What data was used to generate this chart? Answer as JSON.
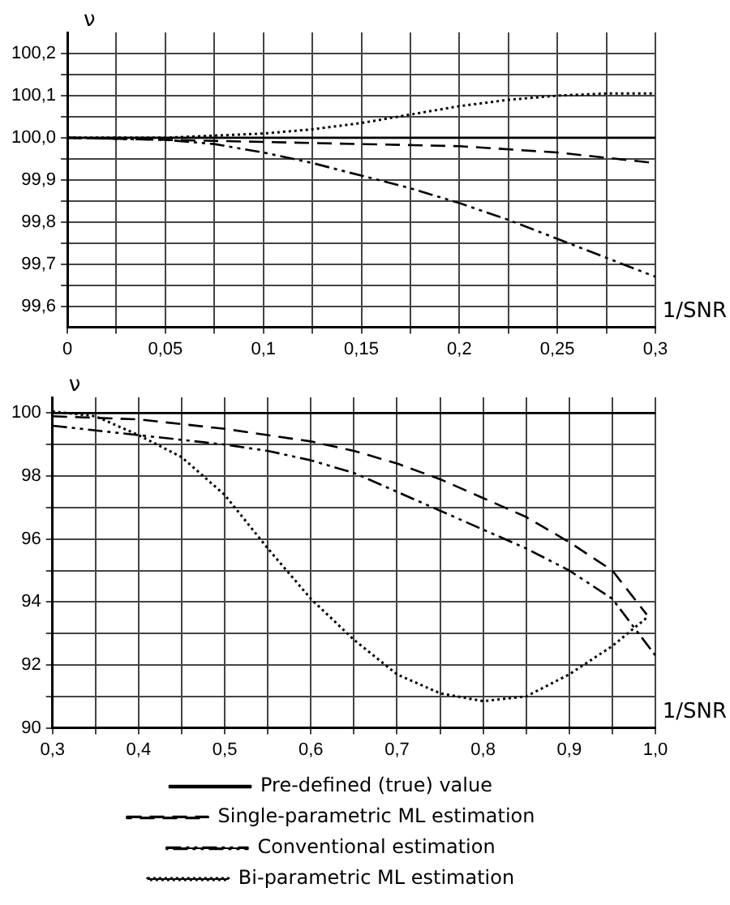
{
  "chart_data": [
    {
      "type": "line",
      "xlabel": "1/SNR",
      "ylabel": "ν",
      "xlim": [
        0,
        0.3
      ],
      "ylim": [
        99.55,
        100.25
      ],
      "grid": true,
      "legend": false,
      "marker": "none",
      "xticks": [
        {
          "value": 0,
          "label": "0"
        },
        {
          "value": 0.025,
          "label": null
        },
        {
          "value": 0.05,
          "label": "0,05"
        },
        {
          "value": 0.075,
          "label": null
        },
        {
          "value": 0.1,
          "label": "0,1"
        },
        {
          "value": 0.125,
          "label": null
        },
        {
          "value": 0.15,
          "label": "0,15"
        },
        {
          "value": 0.175,
          "label": null
        },
        {
          "value": 0.2,
          "label": "0,2"
        },
        {
          "value": 0.225,
          "label": null
        },
        {
          "value": 0.25,
          "label": "0,25"
        },
        {
          "value": 0.275,
          "label": null
        },
        {
          "value": 0.3,
          "label": "0,3"
        }
      ],
      "yticks": [
        {
          "value": 99.6,
          "label": "99,6"
        },
        {
          "value": 99.65,
          "label": null
        },
        {
          "value": 99.7,
          "label": "99,7"
        },
        {
          "value": 99.75,
          "label": null
        },
        {
          "value": 99.8,
          "label": "99,8"
        },
        {
          "value": 99.85,
          "label": null
        },
        {
          "value": 99.9,
          "label": "99,9"
        },
        {
          "value": 99.95,
          "label": null
        },
        {
          "value": 100,
          "label": "100,0"
        },
        {
          "value": 100.05,
          "label": null
        },
        {
          "value": 100.1,
          "label": "100,1"
        },
        {
          "value": 100.15,
          "label": null
        },
        {
          "value": 100.2,
          "label": "100,2"
        }
      ],
      "series": [
        {
          "color": "#000000",
          "line_style": "solid",
          "x": [
            0,
            0.3
          ],
          "values": [
            100,
            100
          ]
        },
        {
          "color": "#000000",
          "line_style": "dashed",
          "x": [
            0,
            0.05,
            0.1,
            0.15,
            0.2,
            0.25,
            0.3
          ],
          "values": [
            100,
            99.995,
            99.99,
            99.985,
            99.98,
            99.965,
            99.94
          ]
        },
        {
          "color": "#000000",
          "line_style": "dashdot",
          "x": [
            0,
            0.05,
            0.075,
            0.1,
            0.125,
            0.15,
            0.175,
            0.2,
            0.225,
            0.25,
            0.275,
            0.3
          ],
          "values": [
            100,
            99.995,
            99.985,
            99.965,
            99.94,
            99.91,
            99.88,
            99.845,
            99.805,
            99.76,
            99.715,
            99.67
          ]
        },
        {
          "color": "#000000",
          "line_style": "dotted",
          "x": [
            0,
            0.05,
            0.1,
            0.125,
            0.15,
            0.175,
            0.2,
            0.225,
            0.25,
            0.275,
            0.3
          ],
          "values": [
            100,
            100,
            100.01,
            100.02,
            100.035,
            100.055,
            100.075,
            100.09,
            100.1,
            100.105,
            100.105
          ]
        }
      ]
    },
    {
      "type": "line",
      "xlabel": "1/SNR",
      "ylabel": "ν",
      "xlim": [
        0.3,
        1.0
      ],
      "ylim": [
        90,
        100.5
      ],
      "grid": true,
      "legend": "bottom",
      "marker": "none",
      "xticks": [
        {
          "value": 0.3,
          "label": "0,3"
        },
        {
          "value": 0.35,
          "label": null
        },
        {
          "value": 0.4,
          "label": "0,4"
        },
        {
          "value": 0.45,
          "label": null
        },
        {
          "value": 0.5,
          "label": "0,5"
        },
        {
          "value": 0.55,
          "label": null
        },
        {
          "value": 0.6,
          "label": "0,6"
        },
        {
          "value": 0.65,
          "label": null
        },
        {
          "value": 0.7,
          "label": "0,7"
        },
        {
          "value": 0.75,
          "label": null
        },
        {
          "value": 0.8,
          "label": "0,8"
        },
        {
          "value": 0.85,
          "label": null
        },
        {
          "value": 0.9,
          "label": "0,9"
        },
        {
          "value": 0.95,
          "label": null
        },
        {
          "value": 1.0,
          "label": "1,0"
        }
      ],
      "yticks": [
        90,
        {
          "value": 91,
          "label": null
        },
        92,
        {
          "value": 93,
          "label": null
        },
        94,
        {
          "value": 95,
          "label": null
        },
        96,
        {
          "value": 97,
          "label": null
        },
        98,
        {
          "value": 99,
          "label": null
        },
        100
      ],
      "series": [
        {
          "name": "Pre-defined (true) value",
          "color": "#000000",
          "line_style": "solid",
          "x": [
            0.3,
            1.0
          ],
          "values": [
            100,
            100
          ]
        },
        {
          "name": "Single-parametric ML estimation",
          "color": "#000000",
          "line_style": "dashed",
          "x": [
            0.3,
            0.35,
            0.4,
            0.5,
            0.6,
            0.65,
            0.7,
            0.75,
            0.8,
            0.85,
            0.9,
            0.95,
            0.99
          ],
          "values": [
            99.9,
            99.85,
            99.8,
            99.5,
            99.1,
            98.8,
            98.4,
            97.9,
            97.3,
            96.7,
            95.9,
            95.0,
            93.6
          ]
        },
        {
          "name": "Conventional estimation",
          "color": "#000000",
          "line_style": "dashdot",
          "x": [
            0.3,
            0.4,
            0.5,
            0.55,
            0.6,
            0.65,
            0.7,
            0.75,
            0.8,
            0.85,
            0.9,
            0.95,
            1.0
          ],
          "values": [
            99.6,
            99.3,
            99.0,
            98.8,
            98.5,
            98.1,
            97.5,
            96.9,
            96.3,
            95.7,
            95.0,
            94.1,
            92.3
          ]
        },
        {
          "name": "Bi-parametric ML estimation",
          "color": "#000000",
          "line_style": "dotted",
          "x": [
            0.3,
            0.35,
            0.4,
            0.45,
            0.5,
            0.55,
            0.6,
            0.65,
            0.7,
            0.75,
            0.8,
            0.85,
            0.9,
            0.95,
            0.99
          ],
          "values": [
            100.05,
            99.9,
            99.3,
            98.6,
            97.4,
            95.7,
            94.1,
            92.8,
            91.7,
            91.1,
            90.85,
            91.0,
            91.7,
            92.6,
            93.5
          ]
        }
      ]
    }
  ]
}
